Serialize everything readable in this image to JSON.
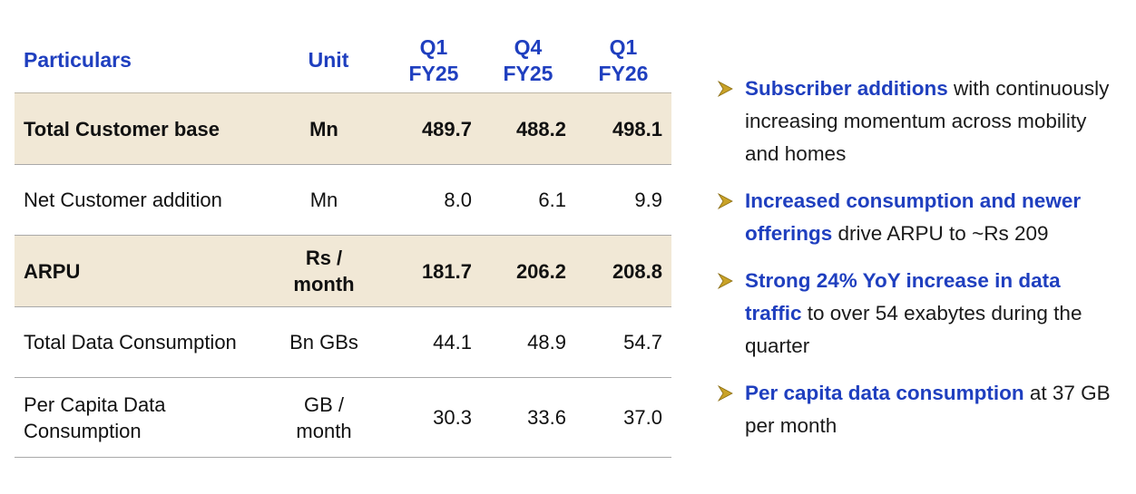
{
  "table": {
    "headers": {
      "particulars": "Particulars",
      "unit": "Unit",
      "q1fy25": [
        "Q1",
        "FY25"
      ],
      "q4fy25": [
        "Q4",
        "FY25"
      ],
      "q1fy26": [
        "Q1",
        "FY26"
      ]
    },
    "rows": [
      {
        "particulars": [
          "Total Customer base"
        ],
        "unit": [
          "Mn"
        ],
        "q1fy25": "489.7",
        "q4fy25": "488.2",
        "q1fy26": "498.1"
      },
      {
        "particulars": [
          "Net Customer addition"
        ],
        "unit": [
          "Mn"
        ],
        "q1fy25": "8.0",
        "q4fy25": "6.1",
        "q1fy26": "9.9"
      },
      {
        "particulars": [
          "ARPU"
        ],
        "unit": [
          "Rs /",
          "month"
        ],
        "q1fy25": "181.7",
        "q4fy25": "206.2",
        "q1fy26": "208.8"
      },
      {
        "particulars": [
          "Total Data Consumption"
        ],
        "unit": [
          "Bn GBs"
        ],
        "q1fy25": "44.1",
        "q4fy25": "48.9",
        "q1fy26": "54.7"
      },
      {
        "particulars": [
          "Per Capita Data",
          "Consumption"
        ],
        "unit": [
          "GB /",
          "month"
        ],
        "q1fy25": "30.3",
        "q4fy25": "33.6",
        "q1fy26": "37.0"
      }
    ]
  },
  "bullets": [
    {
      "highlight": "Subscriber additions",
      "rest": " with continuously increasing momentum across mobility and homes"
    },
    {
      "highlight": "Increased consumption and newer offerings",
      "rest": " drive ARPU to ~Rs 209"
    },
    {
      "highlight": "Strong 24% YoY increase in data traffic",
      "rest": " to over 54 exabytes during the quarter"
    },
    {
      "highlight": "Per capita data consumption",
      "rest": " at 37 GB per month"
    }
  ],
  "colors": {
    "heading_blue": "#1f3fbf",
    "row_shade": "#f1e8d6",
    "arrow_gold": "#c9a227"
  },
  "icons": {
    "bullet": "arrow-bullet-icon"
  }
}
